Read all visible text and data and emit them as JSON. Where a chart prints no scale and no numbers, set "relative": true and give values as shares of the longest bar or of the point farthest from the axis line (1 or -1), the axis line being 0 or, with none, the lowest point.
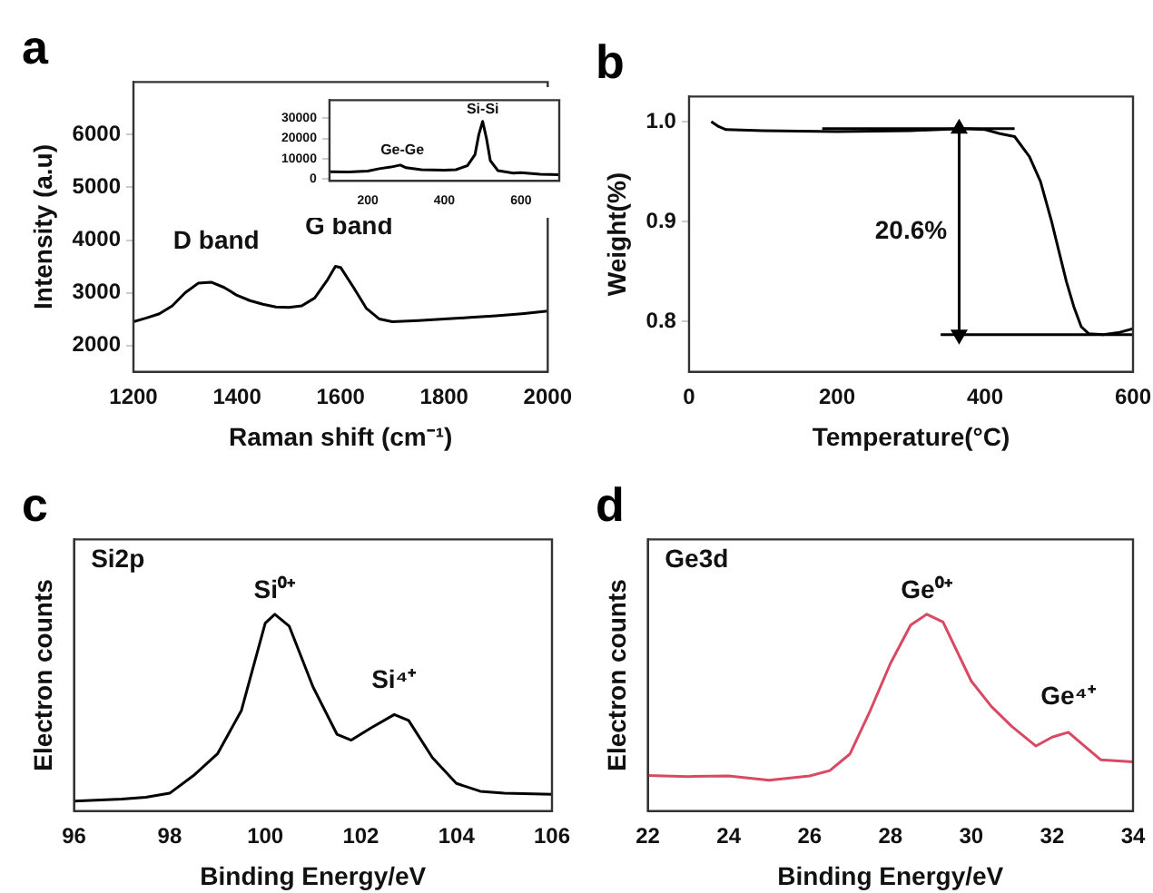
{
  "chart_data": [
    {
      "type": "line",
      "title": "a",
      "xlabel": "Raman shift (cm⁻¹)",
      "ylabel": "Intensity (a.u)",
      "marker": "none",
      "grid": false,
      "xlim": [
        1200,
        2000
      ],
      "xticks": [
        1200,
        1400,
        1600,
        1800,
        2000
      ],
      "ylim": [
        1500,
        7000
      ],
      "yticks": [
        2000,
        3000,
        4000,
        5000,
        6000
      ],
      "x": [
        1200,
        1225,
        1250,
        1275,
        1300,
        1325,
        1350,
        1375,
        1400,
        1425,
        1450,
        1475,
        1500,
        1525,
        1550,
        1575,
        1590,
        1600,
        1625,
        1650,
        1675,
        1700,
        1750,
        1800,
        1850,
        1900,
        1950,
        2000
      ],
      "series": [
        {
          "color": "#000000",
          "values": [
            2450,
            2520,
            2600,
            2750,
            3000,
            3180,
            3200,
            3100,
            2950,
            2850,
            2780,
            2730,
            2720,
            2750,
            2900,
            3250,
            3500,
            3480,
            3100,
            2700,
            2500,
            2450,
            2470,
            2500,
            2530,
            2560,
            2600,
            2650
          ]
        }
      ],
      "annotations": [
        "D band",
        "G band"
      ]
    },
    {
      "type": "line",
      "marker": "none",
      "grid": false,
      "xlim": [
        100,
        700
      ],
      "xticks": [
        200,
        400,
        600
      ],
      "ylim": [
        -1000,
        39000
      ],
      "yticks": [
        0,
        10000,
        20000,
        30000
      ],
      "x": [
        100,
        150,
        200,
        230,
        260,
        285,
        300,
        340,
        400,
        430,
        460,
        480,
        490,
        500,
        510,
        520,
        540,
        580,
        600,
        650,
        700
      ],
      "series": [
        {
          "color": "#000000",
          "values": [
            3500,
            3400,
            3800,
            5000,
            5800,
            6800,
            5500,
            4500,
            4300,
            4500,
            6500,
            12000,
            22000,
            28500,
            20000,
            9000,
            4000,
            2800,
            3000,
            2200,
            2000
          ]
        }
      ],
      "annotations": [
        "Ge-Ge",
        "Si-Si"
      ]
    },
    {
      "type": "line",
      "title": "b",
      "xlabel": "Temperature(°C)",
      "ylabel": "Weight(%)",
      "marker": "none",
      "grid": false,
      "xlim": [
        0,
        600
      ],
      "xticks": [
        0,
        200,
        400,
        600
      ],
      "ylim": [
        0.75,
        1.025
      ],
      "yticks": [
        0.8,
        0.9,
        {
          "value": 1,
          "label": "1.0"
        }
      ],
      "series": [
        {
          "color": "#000000",
          "x": [
            30,
            40,
            50,
            100,
            200,
            300,
            370,
            400,
            420,
            440,
            460,
            475,
            490,
            500,
            510,
            520,
            530,
            540,
            560,
            580,
            600
          ],
          "values": [
            1.0,
            0.995,
            0.992,
            0.991,
            0.99,
            0.991,
            0.993,
            0.992,
            0.988,
            0.985,
            0.965,
            0.94,
            0.9,
            0.87,
            0.84,
            0.815,
            0.795,
            0.788,
            0.787,
            0.789,
            0.793
          ]
        },
        {
          "color": "#000000",
          "x": [
            180,
            440
          ],
          "values": [
            0.993,
            0.993
          ]
        },
        {
          "color": "#000000",
          "x": [
            340,
            600
          ],
          "values": [
            0.787,
            0.787
          ]
        },
        {
          "color": "#000000",
          "x": [
            365,
            365
          ],
          "values": [
            0.993,
            0.787
          ],
          "marker": "triangle"
        }
      ],
      "annotations": [
        "20.6%"
      ]
    },
    {
      "type": "line",
      "title": "c",
      "xlabel": "Binding Energy/eV",
      "ylabel": "Electron counts",
      "relative": true,
      "tick_labels": "x",
      "marker": "none",
      "grid": false,
      "xlim": [
        96,
        106
      ],
      "xticks": [
        96,
        98,
        100,
        102,
        104,
        106
      ],
      "x": [
        96,
        97,
        97.5,
        98,
        98.5,
        99,
        99.5,
        100,
        100.2,
        100.5,
        101,
        101.5,
        101.8,
        102.2,
        102.7,
        103,
        103.5,
        104,
        104.5,
        105,
        106
      ],
      "series": [
        {
          "color": "#000000",
          "values": [
            0.05,
            0.06,
            0.07,
            0.09,
            0.18,
            0.29,
            0.51,
            0.955,
            1.0,
            0.94,
            0.63,
            0.39,
            0.36,
            0.42,
            0.49,
            0.46,
            0.27,
            0.14,
            0.1,
            0.09,
            0.085
          ]
        }
      ],
      "annotations": [
        "Si2p",
        "Si⁰⁺",
        "Si⁴⁺"
      ]
    },
    {
      "type": "line",
      "title": "d",
      "xlabel": "Binding Energy/eV",
      "ylabel": "Electron counts",
      "relative": true,
      "tick_labels": "x",
      "marker": "none",
      "grid": false,
      "xlim": [
        22,
        34
      ],
      "xticks": [
        22,
        24,
        26,
        28,
        30,
        32,
        34
      ],
      "x": [
        22,
        23,
        24,
        25,
        26,
        26.5,
        27,
        27.5,
        28,
        28.5,
        28.9,
        29.3,
        30,
        30.5,
        31,
        31.6,
        32,
        32.4,
        32.8,
        33.2,
        34
      ],
      "series": [
        {
          "color": "#d84a63",
          "values": [
            0.18,
            0.175,
            0.178,
            0.156,
            0.178,
            0.205,
            0.29,
            0.51,
            0.75,
            0.945,
            1.0,
            0.96,
            0.66,
            0.53,
            0.43,
            0.33,
            0.375,
            0.4,
            0.33,
            0.26,
            0.25
          ]
        }
      ],
      "annotations": [
        "Ge3d",
        "Ge⁰⁺",
        "Ge⁴⁺"
      ]
    }
  ]
}
